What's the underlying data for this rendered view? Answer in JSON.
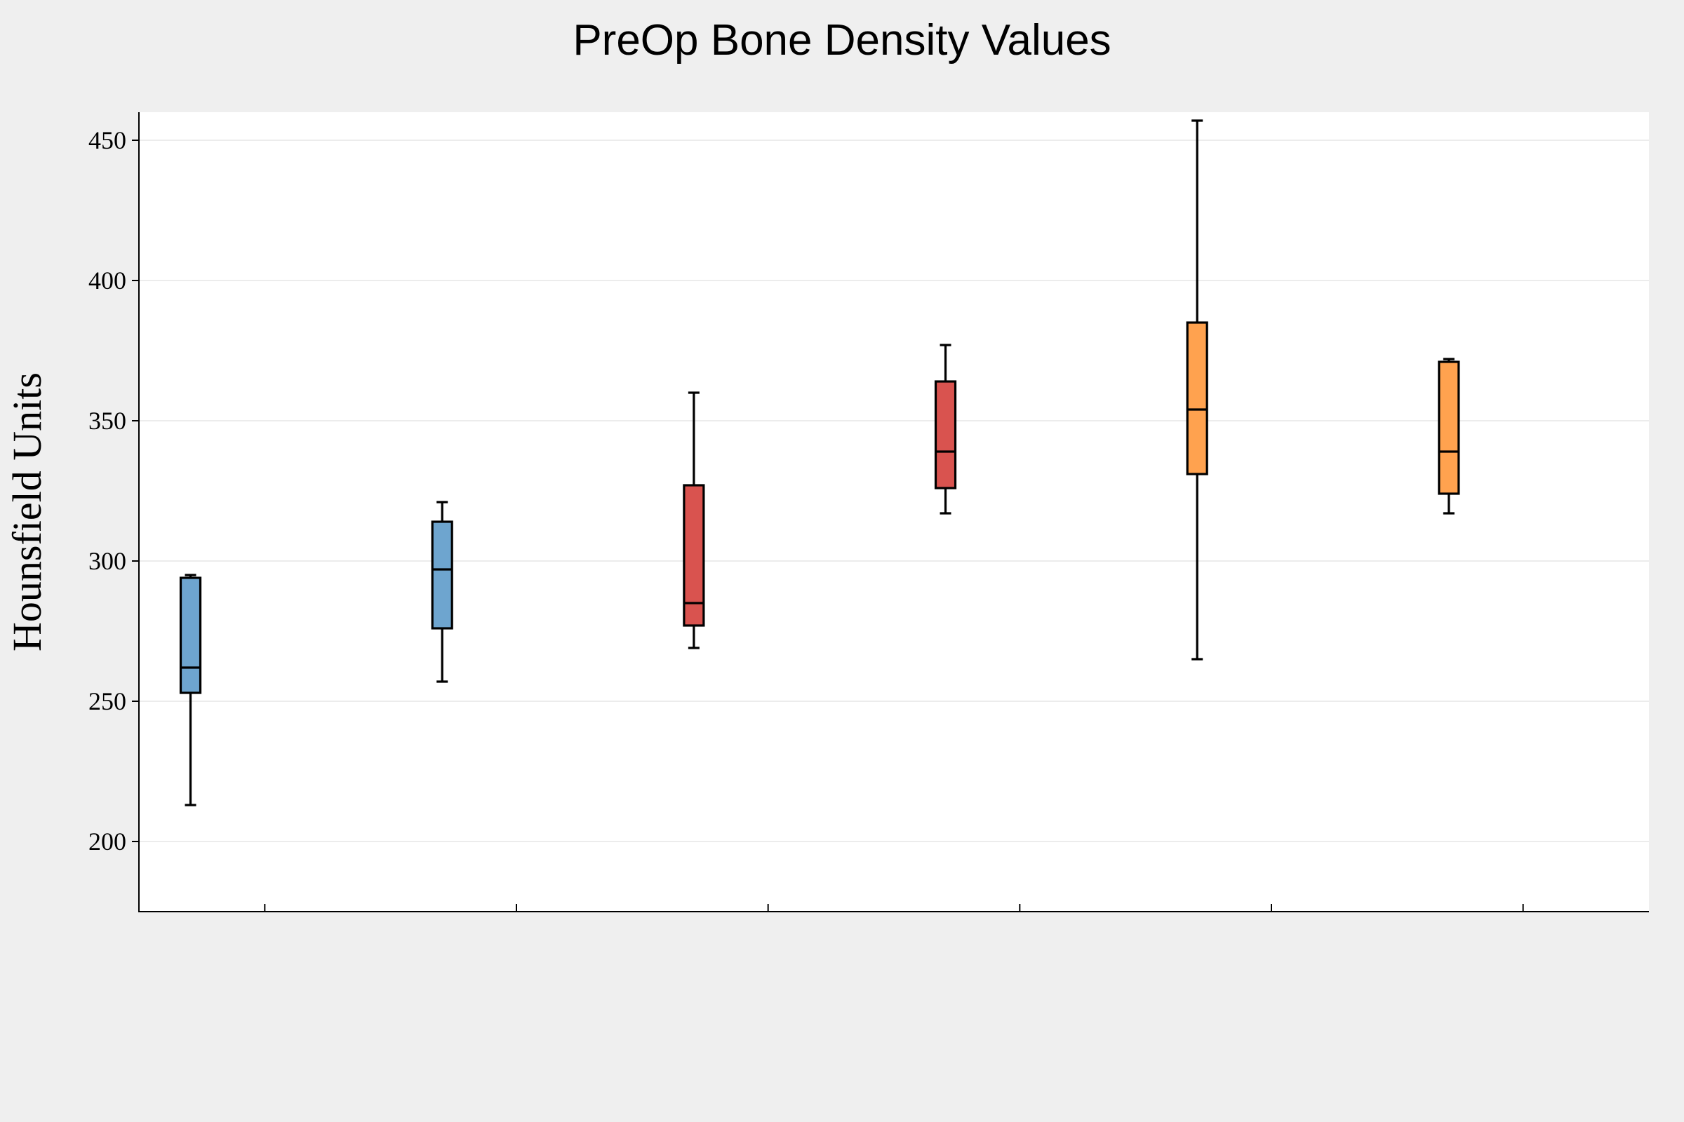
{
  "chart_data": {
    "type": "box",
    "title": "PreOp Bone Density Values",
    "xlabel": "",
    "ylabel": "Hounsfield Units",
    "ylim": [
      175,
      460
    ],
    "yticks": [
      200,
      250,
      300,
      350,
      400,
      450
    ],
    "grid": true,
    "legend": "none",
    "boxes": [
      {
        "whisker_low": 213,
        "q1": 253,
        "median": 262,
        "q3": 294,
        "whisker_high": 295,
        "color": "#6ea5cf"
      },
      {
        "whisker_low": 257,
        "q1": 276,
        "median": 297,
        "q3": 314,
        "whisker_high": 321,
        "color": "#6ea5cf"
      },
      {
        "whisker_low": 269,
        "q1": 277,
        "median": 285,
        "q3": 327,
        "whisker_high": 360,
        "color": "#d9534f"
      },
      {
        "whisker_low": 317,
        "q1": 326,
        "median": 339,
        "q3": 364,
        "whisker_high": 377,
        "color": "#d9534f"
      },
      {
        "whisker_low": 265,
        "q1": 331,
        "median": 354,
        "q3": 385,
        "whisker_high": 457,
        "color": "#ffa24f"
      },
      {
        "whisker_low": 317,
        "q1": 324,
        "median": 339,
        "q3": 371,
        "whisker_high": 372,
        "color": "#ffa24f"
      }
    ]
  }
}
